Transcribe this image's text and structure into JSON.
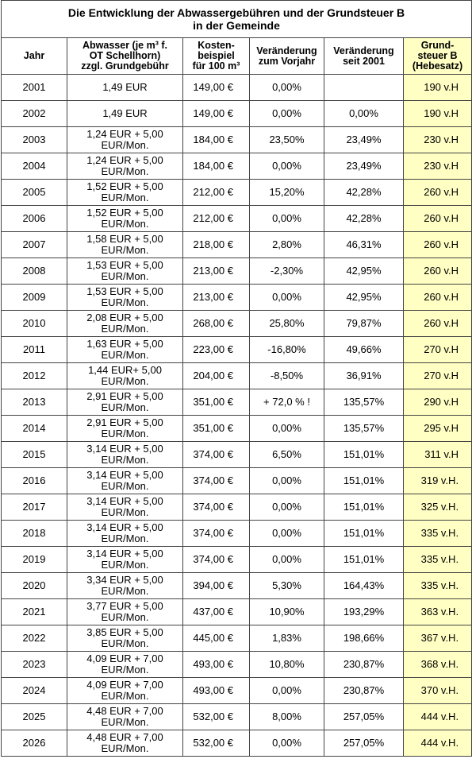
{
  "title": "Die Entwicklung der Abwassergebühren und der Grundsteuer B\nin der Gemeinde",
  "table": {
    "header": [
      "Jahr",
      "Abwasser (je m³ f.\nOT Schellhorn)\nzzgl. Grundgebühr",
      "Kosten-\nbeispiel\nfür 100 m³",
      "Veränderung\nzum Vorjahr",
      "Veränderung\nseit 2001",
      "Grund-\nsteuer B\n(Hebesatz)"
    ],
    "rows": [
      [
        "2001",
        "1,49 EUR",
        "149,00 €",
        "0,00%",
        null,
        "190 v.H"
      ],
      [
        "2002",
        "1,49 EUR",
        "149,00 €",
        "0,00%",
        "0,00%",
        "190 v.H"
      ],
      [
        "2003",
        "1,24 EUR + 5,00\nEUR/Mon.",
        "184,00 €",
        "23,50%",
        "23,49%",
        "230 v.H"
      ],
      [
        "2004",
        "1,24 EUR + 5,00\nEUR/Mon.",
        "184,00 €",
        "0,00%",
        "23,49%",
        "230 v.H"
      ],
      [
        "2005",
        "1,52 EUR + 5,00\nEUR/Mon.",
        "212,00 €",
        "15,20%",
        "42,28%",
        "260 v.H"
      ],
      [
        "2006",
        "1,52 EUR + 5,00\nEUR/Mon.",
        "212,00 €",
        "0,00%",
        "42,28%",
        "260 v.H"
      ],
      [
        "2007",
        "1,58 EUR + 5,00\nEUR/Mon.",
        "218,00 €",
        "2,80%",
        "46,31%",
        "260 v.H"
      ],
      [
        "2008",
        "1,53 EUR + 5,00\nEUR/Mon.",
        "213,00 €",
        "-2,30%",
        "42,95%",
        "260 v.H"
      ],
      [
        "2009",
        "1,53 EUR + 5,00\nEUR/Mon.",
        "213,00 €",
        "0,00%",
        "42,95%",
        "260 v.H"
      ],
      [
        "2010",
        "2,08 EUR + 5,00\nEUR/Mon.",
        "268,00 €",
        "25,80%",
        "79,87%",
        "260 v.H"
      ],
      [
        "2011",
        "1,63 EUR + 5,00\nEUR/Mon.",
        "223,00 €",
        "-16,80%",
        "49,66%",
        "270 v.H"
      ],
      [
        "2012",
        "1,44 EUR+ 5,00\nEUR/Mon.",
        "204,00 €",
        "-8,50%",
        "36,91%",
        "270 v.H"
      ],
      [
        "2013",
        "2,91 EUR + 5,00\nEUR/Mon.",
        "351,00 €",
        "+ 72,0 % !",
        "135,57%",
        "290 v.H"
      ],
      [
        "2014",
        "2,91 EUR + 5,00\nEUR/Mon.",
        "351,00 €",
        "0,00%",
        "135,57%",
        "295 v.H"
      ],
      [
        "2015",
        "3,14 EUR + 5,00\nEUR/Mon.",
        "374,00 €",
        "6,50%",
        "151,01%",
        "311 v.H"
      ],
      [
        "2016",
        "3,14 EUR + 5,00\nEUR/Mon.",
        "374,00 €",
        "0,00%",
        "151,01%",
        "319 v.H."
      ],
      [
        "2017",
        "3,14 EUR + 5,00\nEUR/Mon.",
        "374,00 €",
        "0,00%",
        "151,01%",
        "325 v.H."
      ],
      [
        "2018",
        "3,14 EUR + 5,00\nEUR/Mon.",
        "374,00 €",
        "0,00%",
        "151,01%",
        "335 v.H."
      ],
      [
        "2019",
        "3,14 EUR + 5,00\nEUR/Mon.",
        "374,00 €",
        "0,00%",
        "151,01%",
        "335 v.H."
      ],
      [
        "2020",
        "3,34 EUR + 5,00\nEUR/Mon.",
        "394,00 €",
        "5,30%",
        "164,43%",
        "335 v.H."
      ],
      [
        "2021",
        "3,77 EUR + 5,00\nEUR/Mon.",
        "437,00 €",
        "10,90%",
        "193,29%",
        "363 v.H."
      ],
      [
        "2022",
        "3,85 EUR + 5,00\nEUR/Mon.",
        "445,00 €",
        "1,83%",
        "198,66%",
        "367 v.H."
      ],
      [
        "2023",
        "4,09 EUR + 7,00\nEUR/Mon.",
        "493,00 €",
        "10,80%",
        "230,87%",
        "368 v.H."
      ],
      [
        "2024",
        "4,09 EUR + 7,00\nEUR/Mon.",
        "493,00 €",
        "0,00%",
        "230,87%",
        "370 v.H."
      ],
      [
        "2025",
        "4,48 EUR + 7,00\nEUR/Mon.",
        "532,00 €",
        "8,00%",
        "257,05%",
        "444 v.H."
      ],
      [
        "2026",
        "4,48 EUR + 7,00\nEUR/Mon.",
        "532,00 €",
        "0,00%",
        "257,05%",
        "444 v.H."
      ]
    ]
  }
}
